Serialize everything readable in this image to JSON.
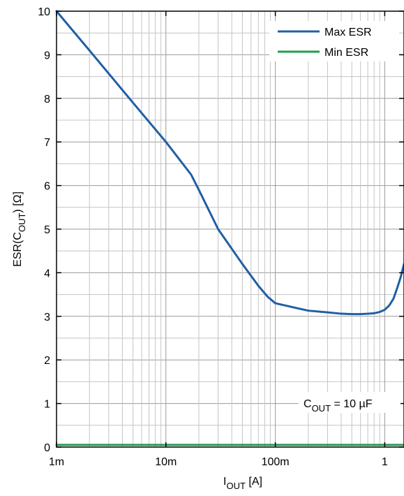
{
  "chart_data": {
    "type": "line",
    "xscale": "log",
    "xlim": [
      0.001,
      1.5
    ],
    "ylim": [
      0,
      10
    ],
    "grid": true,
    "legend_position": "top-right",
    "xlabel": {
      "main": "I",
      "sub": "OUT",
      "rest": " [A]"
    },
    "ylabel": {
      "main": "ESR(C",
      "sub": "OUT",
      "rest": ") [Ω]"
    },
    "xticks": [
      {
        "value": 0.001,
        "label": "1m"
      },
      {
        "value": 0.01,
        "label": "10m"
      },
      {
        "value": 0.1,
        "label": "100m"
      },
      {
        "value": 1,
        "label": "1"
      }
    ],
    "yticks": [
      {
        "value": 0,
        "label": "0"
      },
      {
        "value": 1,
        "label": "1"
      },
      {
        "value": 2,
        "label": "2"
      },
      {
        "value": 3,
        "label": "3"
      },
      {
        "value": 4,
        "label": "4"
      },
      {
        "value": 5,
        "label": "5"
      },
      {
        "value": 6,
        "label": "6"
      },
      {
        "value": 7,
        "label": "7"
      },
      {
        "value": 8,
        "label": "8"
      },
      {
        "value": 9,
        "label": "9"
      },
      {
        "value": 10,
        "label": "10"
      }
    ],
    "annotation": {
      "main": "C",
      "sub": "OUT",
      "rest": " = 10 µF"
    },
    "series": [
      {
        "name": "Max ESR",
        "color": "#1f5fa5",
        "x": [
          0.001,
          0.002,
          0.005,
          0.01,
          0.017,
          0.02,
          0.03,
          0.05,
          0.07,
          0.085,
          0.1,
          0.15,
          0.2,
          0.3,
          0.4,
          0.5,
          0.6,
          0.7,
          0.8,
          0.9,
          1.0,
          1.1,
          1.2,
          1.3,
          1.4,
          1.5
        ],
        "y": [
          10.0,
          9.1,
          7.9,
          7.0,
          6.25,
          5.9,
          5.0,
          4.2,
          3.7,
          3.45,
          3.3,
          3.2,
          3.13,
          3.09,
          3.06,
          3.05,
          3.05,
          3.06,
          3.07,
          3.1,
          3.15,
          3.25,
          3.4,
          3.65,
          3.9,
          4.2
        ]
      },
      {
        "name": "Min ESR",
        "color": "#1e9e4e",
        "x": [
          0.001,
          1.5
        ],
        "y": [
          0.05,
          0.05
        ]
      }
    ]
  }
}
